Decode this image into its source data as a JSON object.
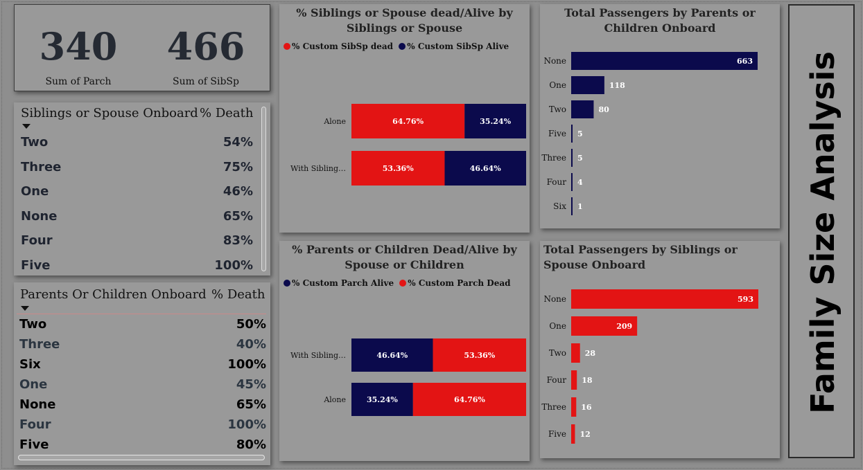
{
  "kpi": {
    "parch_value": "340",
    "parch_label": "Sum of Parch",
    "sibsp_value": "466",
    "sibsp_label": "Sum of SibSp"
  },
  "table_sibsp": {
    "col_label": "Siblings or Spouse Onboard",
    "col_value": "% Death",
    "rows": [
      {
        "label": "Two",
        "value": "54%"
      },
      {
        "label": "Three",
        "value": "75%"
      },
      {
        "label": "One",
        "value": "46%"
      },
      {
        "label": "None",
        "value": "65%"
      },
      {
        "label": "Four",
        "value": "83%"
      },
      {
        "label": "Five",
        "value": "100%"
      }
    ]
  },
  "table_parch": {
    "col_label": "Parents Or Children Onboard",
    "col_value": "% Death",
    "rows": [
      {
        "label": "Two",
        "value": "50%"
      },
      {
        "label": "Three",
        "value": "40%"
      },
      {
        "label": "Six",
        "value": "100%"
      },
      {
        "label": "One",
        "value": "45%"
      },
      {
        "label": "None",
        "value": "65%"
      },
      {
        "label": "Four",
        "value": "100%"
      },
      {
        "label": "Five",
        "value": "80%"
      }
    ]
  },
  "side_title": "Family Size Analysis",
  "colors": {
    "red": "#e31414",
    "navy": "#0b0a4c"
  },
  "chart_data": [
    {
      "type": "bar",
      "stacked": "100%",
      "orientation": "horizontal",
      "title": "% Siblings or Spouse dead/Alive by Siblings or Spouse",
      "categories": [
        "Alone",
        "With Sibling…"
      ],
      "series": [
        {
          "name": "% Custom SibSp dead",
          "color": "#e31414",
          "values": [
            64.76,
            53.36
          ],
          "labels": [
            "64.76%",
            "53.36%"
          ]
        },
        {
          "name": "% Custom SibSp Alive",
          "color": "#0b0a4c",
          "values": [
            35.24,
            46.64
          ],
          "labels": [
            "35.24%",
            "46.64%"
          ]
        }
      ],
      "legend": "top-left"
    },
    {
      "type": "bar",
      "stacked": "100%",
      "orientation": "horizontal",
      "title": "% Parents or Children Dead/Alive by Spouse or Children",
      "categories": [
        "With Sibling…",
        "Alone"
      ],
      "series": [
        {
          "name": "% Custom Parch Alive",
          "color": "#0b0a4c",
          "values": [
            46.64,
            35.24
          ],
          "labels": [
            "46.64%",
            "35.24%"
          ]
        },
        {
          "name": "% Custom Parch Dead",
          "color": "#e31414",
          "values": [
            53.36,
            64.76
          ],
          "labels": [
            "53.36%",
            "64.76%"
          ]
        }
      ],
      "legend": "top-left"
    },
    {
      "type": "bar",
      "orientation": "horizontal",
      "title": "Total Passengers by Parents or Children Onboard",
      "categories": [
        "None",
        "One",
        "Two",
        "Five",
        "Three",
        "Four",
        "Six"
      ],
      "values": [
        663,
        118,
        80,
        5,
        5,
        4,
        1
      ],
      "color": "#0b0a4c"
    },
    {
      "type": "bar",
      "orientation": "horizontal",
      "title": "Total Passengers by Siblings or Spouse Onboard",
      "categories": [
        "None",
        "One",
        "Two",
        "Four",
        "Three",
        "Five"
      ],
      "values": [
        593,
        209,
        28,
        18,
        16,
        12
      ],
      "color": "#e31414"
    }
  ]
}
